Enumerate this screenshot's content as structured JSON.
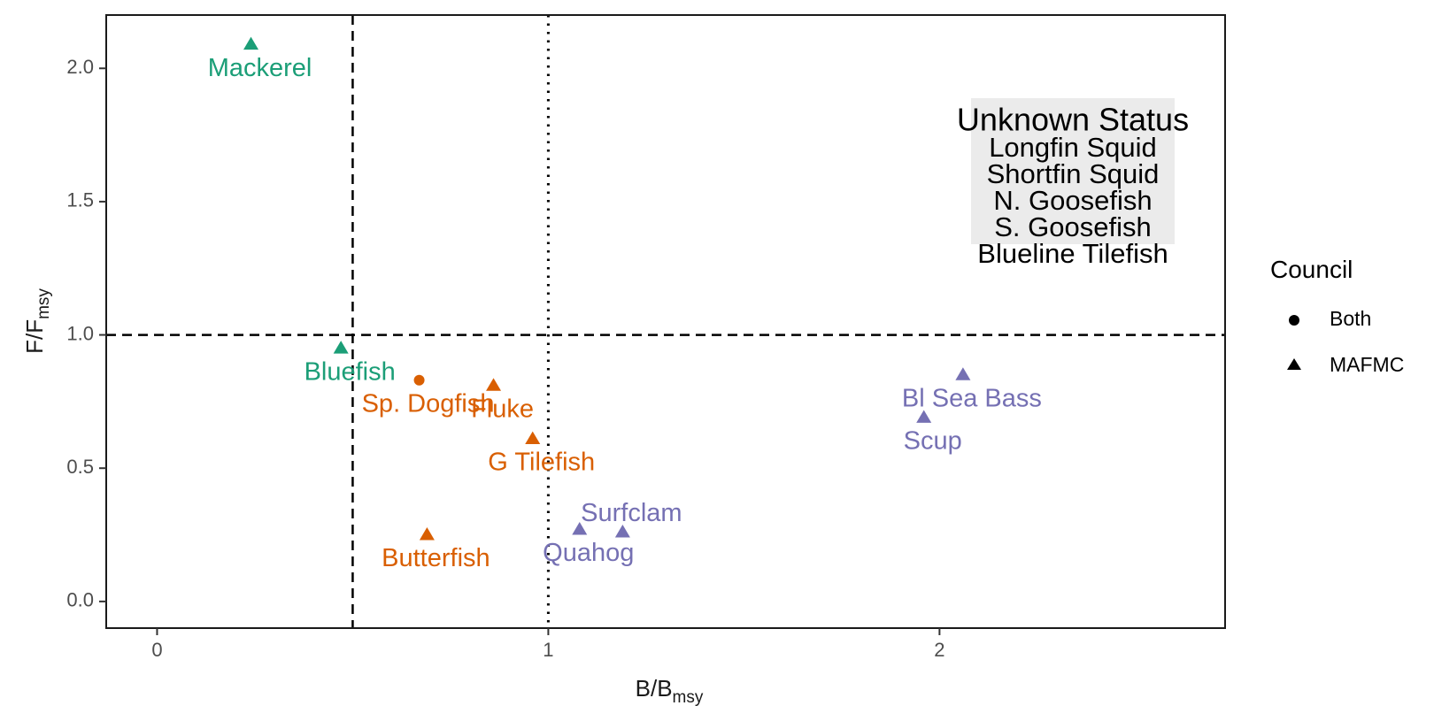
{
  "chart_data": {
    "type": "scatter",
    "title": "",
    "xlabel": "B/B",
    "xlabel_sub": "msy",
    "ylabel": "F/F",
    "ylabel_sub": "msy",
    "xlim": [
      -0.13,
      2.73
    ],
    "ylim": [
      -0.1,
      2.2
    ],
    "x_ticks": [
      0,
      1,
      2
    ],
    "x_tick_labels": [
      "0",
      "1",
      "2"
    ],
    "y_ticks": [
      0.0,
      0.5,
      1.0,
      1.5,
      2.0
    ],
    "y_tick_labels": [
      "0.0",
      "0.5",
      "1.0",
      "1.5",
      "2.0"
    ],
    "reference_lines": [
      {
        "axis": "x",
        "value": 0.5,
        "style": "dashed"
      },
      {
        "axis": "x",
        "value": 1.0,
        "style": "dotted"
      },
      {
        "axis": "y",
        "value": 1.0,
        "style": "dashed"
      }
    ],
    "grid": false,
    "legend": {
      "title": "Council",
      "placement": "right",
      "entries": [
        {
          "label": "Both",
          "shape": "circle"
        },
        {
          "label": "MAFMC",
          "shape": "triangle"
        }
      ]
    },
    "colors": {
      "green": "#1b9e77",
      "orange": "#d95f02",
      "purple": "#7570b3"
    },
    "points": [
      {
        "label": "Mackerel",
        "x": 0.24,
        "y": 2.09,
        "council": "MAFMC",
        "color": "green",
        "label_side": "below"
      },
      {
        "label": "Bluefish",
        "x": 0.47,
        "y": 0.95,
        "council": "MAFMC",
        "color": "green",
        "label_side": "below"
      },
      {
        "label": "Sp. Dogfish",
        "x": 0.67,
        "y": 0.83,
        "council": "Both",
        "color": "orange",
        "label_side": "below"
      },
      {
        "label": "Fluke",
        "x": 0.86,
        "y": 0.81,
        "council": "MAFMC",
        "color": "orange",
        "label_side": "below"
      },
      {
        "label": "G Tilefish",
        "x": 0.96,
        "y": 0.61,
        "council": "MAFMC",
        "color": "orange",
        "label_side": "below"
      },
      {
        "label": "Butterfish",
        "x": 0.69,
        "y": 0.25,
        "council": "MAFMC",
        "color": "orange",
        "label_side": "below"
      },
      {
        "label": "Quahog",
        "x": 1.08,
        "y": 0.27,
        "council": "MAFMC",
        "color": "purple",
        "label_side": "below"
      },
      {
        "label": "Surfclam",
        "x": 1.19,
        "y": 0.26,
        "council": "MAFMC",
        "color": "purple",
        "label_side": "above"
      },
      {
        "label": "Bl Sea Bass",
        "x": 2.06,
        "y": 0.85,
        "council": "MAFMC",
        "color": "purple",
        "label_side": "below"
      },
      {
        "label": "Scup",
        "x": 1.96,
        "y": 0.69,
        "council": "MAFMC",
        "color": "purple",
        "label_side": "below"
      }
    ],
    "annotation": {
      "title": "Unknown Status",
      "items": [
        "Longfin Squid",
        "Shortfin Squid",
        "N. Goosefish",
        "S. Goosefish",
        "Blueline Tilefish"
      ]
    }
  }
}
